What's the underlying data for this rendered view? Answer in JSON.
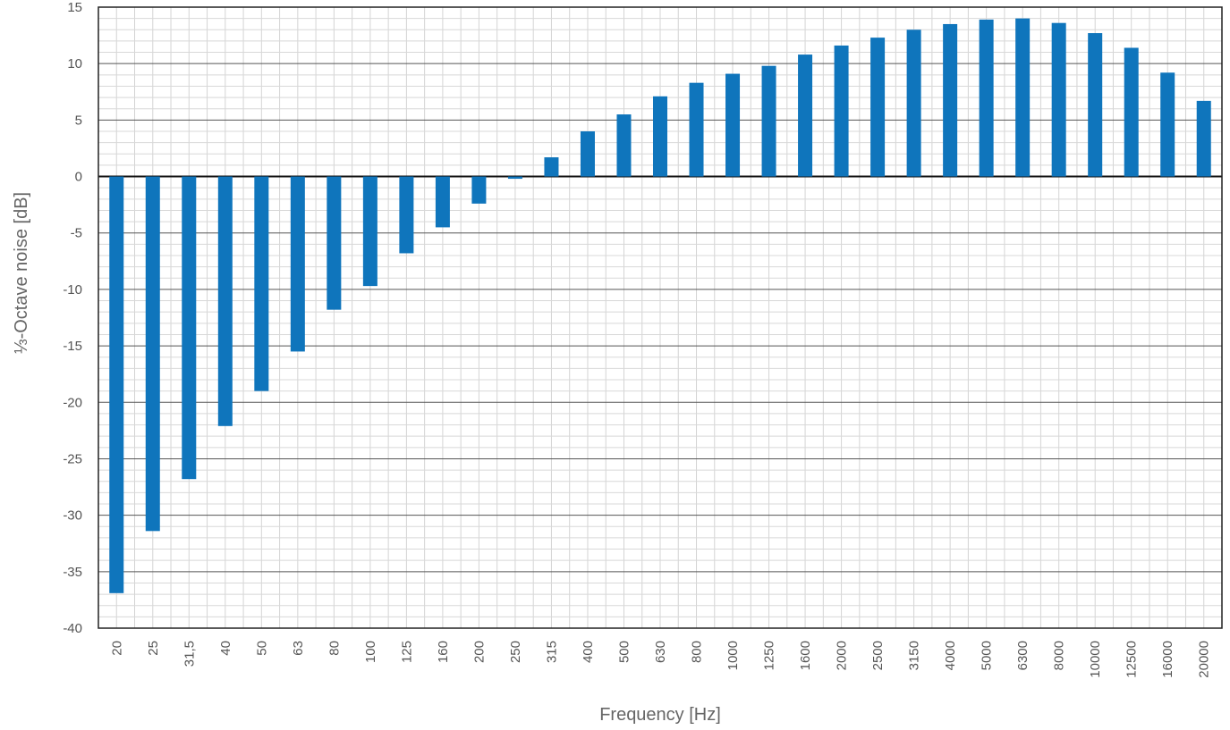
{
  "chart_data": {
    "type": "bar",
    "title": "",
    "xlabel": "Frequency [Hz]",
    "ylabel": "⅓-Octave noise [dB]",
    "ylim": [
      -40,
      15
    ],
    "yticks": [
      15,
      10,
      5,
      0,
      -5,
      -10,
      -15,
      -20,
      -25,
      -30,
      -35,
      -40
    ],
    "grid": true,
    "legend": "none",
    "bar_color": "#0f75bc",
    "categories": [
      "20",
      "25",
      "31,5",
      "40",
      "50",
      "63",
      "80",
      "100",
      "125",
      "160",
      "200",
      "250",
      "315",
      "400",
      "500",
      "630",
      "800",
      "1000",
      "1250",
      "1600",
      "2000",
      "2500",
      "3150",
      "4000",
      "5000",
      "6300",
      "8000",
      "10000",
      "12500",
      "16000",
      "20000"
    ],
    "values": [
      -36.9,
      -31.4,
      -26.8,
      -22.1,
      -19.0,
      -15.5,
      -11.8,
      -9.7,
      -6.8,
      -4.5,
      -2.4,
      -0.2,
      1.7,
      4.0,
      5.5,
      7.1,
      8.3,
      9.1,
      9.8,
      10.8,
      11.6,
      12.3,
      13.0,
      13.5,
      13.9,
      14.0,
      13.6,
      12.7,
      11.4,
      9.2,
      6.7
    ]
  }
}
